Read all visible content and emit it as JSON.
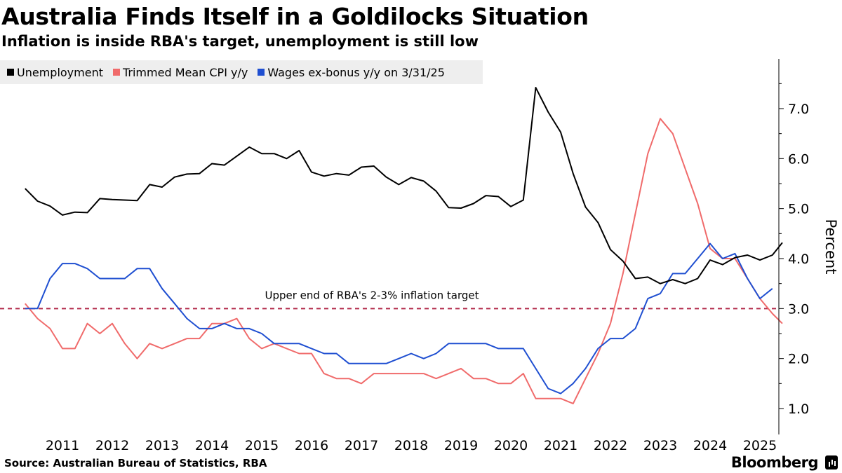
{
  "header": {
    "title": "Australia Finds Itself in a Goldilocks Situation",
    "subtitle": "Inflation is inside RBA's target, unemployment is still low"
  },
  "legend": [
    {
      "label": "Unemployment",
      "color": "#000000"
    },
    {
      "label": "Trimmed Mean CPI y/y",
      "color": "#f06b6b"
    },
    {
      "label": "Wages ex-bonus y/y on 3/31/25",
      "color": "#1f4fd1"
    }
  ],
  "footer": {
    "source": "Source: Australian Bureau of Statistics, RBA",
    "brand": "Bloomberg"
  },
  "chart_data": {
    "type": "line",
    "title": "Australia Finds Itself in a Goldilocks Situation",
    "subtitle": "Inflation is inside RBA's target, unemployment is still low",
    "xlabel": "",
    "ylabel": "Percent",
    "xlim": [
      2010.25,
      2025.45
    ],
    "ylim": [
      0.6,
      8.0
    ],
    "y_ticks": [
      1.0,
      2.0,
      3.0,
      4.0,
      5.0,
      6.0,
      7.0
    ],
    "y_tick_labels": [
      "1.0",
      "2.0",
      "3.0",
      "4.0",
      "5.0",
      "6.0",
      "7.0"
    ],
    "x_ticks": [
      2011,
      2012,
      2013,
      2014,
      2015,
      2016,
      2017,
      2018,
      2019,
      2020,
      2021,
      2022,
      2023,
      2024,
      2025
    ],
    "x_tick_labels": [
      "2011",
      "2012",
      "2013",
      "2014",
      "2015",
      "2016",
      "2017",
      "2018",
      "2019",
      "2020",
      "2021",
      "2022",
      "2023",
      "2024",
      "2025"
    ],
    "y_axis_position": "right",
    "grid": false,
    "legend_position": "top-left",
    "reference_line": {
      "y": 3.0,
      "label": "Upper end of RBA's 2-3% inflation target",
      "color": "#b22a4a",
      "style": "dashed"
    },
    "series": [
      {
        "name": "Unemployment",
        "color": "#000000",
        "points": [
          [
            2010.25,
            5.4
          ],
          [
            2010.5,
            5.15
          ],
          [
            2010.75,
            5.05
          ],
          [
            2011.0,
            4.87
          ],
          [
            2011.25,
            4.93
          ],
          [
            2011.5,
            4.92
          ],
          [
            2011.75,
            5.2
          ],
          [
            2012.0,
            5.18
          ],
          [
            2012.25,
            5.17
          ],
          [
            2012.5,
            5.16
          ],
          [
            2012.75,
            5.48
          ],
          [
            2013.0,
            5.43
          ],
          [
            2013.25,
            5.63
          ],
          [
            2013.5,
            5.69
          ],
          [
            2013.75,
            5.7
          ],
          [
            2014.0,
            5.9
          ],
          [
            2014.25,
            5.87
          ],
          [
            2014.5,
            6.05
          ],
          [
            2014.75,
            6.23
          ],
          [
            2015.0,
            6.1
          ],
          [
            2015.25,
            6.1
          ],
          [
            2015.5,
            6.0
          ],
          [
            2015.75,
            6.16
          ],
          [
            2016.0,
            5.73
          ],
          [
            2016.25,
            5.65
          ],
          [
            2016.5,
            5.7
          ],
          [
            2016.75,
            5.67
          ],
          [
            2017.0,
            5.83
          ],
          [
            2017.25,
            5.85
          ],
          [
            2017.5,
            5.63
          ],
          [
            2017.75,
            5.48
          ],
          [
            2018.0,
            5.62
          ],
          [
            2018.25,
            5.55
          ],
          [
            2018.5,
            5.35
          ],
          [
            2018.75,
            5.02
          ],
          [
            2019.0,
            5.01
          ],
          [
            2019.25,
            5.1
          ],
          [
            2019.5,
            5.26
          ],
          [
            2019.75,
            5.24
          ],
          [
            2020.0,
            5.04
          ],
          [
            2020.25,
            5.17
          ],
          [
            2020.5,
            7.42
          ],
          [
            2020.75,
            6.93
          ],
          [
            2021.0,
            6.53
          ],
          [
            2021.25,
            5.7
          ],
          [
            2021.5,
            5.03
          ],
          [
            2021.75,
            4.72
          ],
          [
            2022.0,
            4.18
          ],
          [
            2022.25,
            3.95
          ],
          [
            2022.5,
            3.6
          ],
          [
            2022.75,
            3.63
          ],
          [
            2023.0,
            3.5
          ],
          [
            2023.25,
            3.58
          ],
          [
            2023.5,
            3.5
          ],
          [
            2023.75,
            3.6
          ],
          [
            2024.0,
            3.97
          ],
          [
            2024.25,
            3.88
          ],
          [
            2024.5,
            4.02
          ],
          [
            2024.75,
            4.07
          ],
          [
            2025.0,
            3.97
          ],
          [
            2025.25,
            4.07
          ],
          [
            2025.45,
            4.32
          ]
        ]
      },
      {
        "name": "Trimmed Mean CPI y/y",
        "color": "#f06b6b",
        "points": [
          [
            2010.25,
            3.1
          ],
          [
            2010.5,
            2.8
          ],
          [
            2010.75,
            2.6
          ],
          [
            2011.0,
            2.2
          ],
          [
            2011.25,
            2.2
          ],
          [
            2011.5,
            2.7
          ],
          [
            2011.75,
            2.5
          ],
          [
            2012.0,
            2.7
          ],
          [
            2012.25,
            2.3
          ],
          [
            2012.5,
            2.0
          ],
          [
            2012.75,
            2.3
          ],
          [
            2013.0,
            2.2
          ],
          [
            2013.25,
            2.3
          ],
          [
            2013.5,
            2.4
          ],
          [
            2013.75,
            2.4
          ],
          [
            2014.0,
            2.7
          ],
          [
            2014.25,
            2.7
          ],
          [
            2014.5,
            2.8
          ],
          [
            2014.75,
            2.4
          ],
          [
            2015.0,
            2.2
          ],
          [
            2015.25,
            2.3
          ],
          [
            2015.5,
            2.2
          ],
          [
            2015.75,
            2.1
          ],
          [
            2016.0,
            2.1
          ],
          [
            2016.25,
            1.7
          ],
          [
            2016.5,
            1.6
          ],
          [
            2016.75,
            1.6
          ],
          [
            2017.0,
            1.5
          ],
          [
            2017.25,
            1.7
          ],
          [
            2017.5,
            1.7
          ],
          [
            2017.75,
            1.7
          ],
          [
            2018.0,
            1.7
          ],
          [
            2018.25,
            1.7
          ],
          [
            2018.5,
            1.6
          ],
          [
            2018.75,
            1.7
          ],
          [
            2019.0,
            1.8
          ],
          [
            2019.25,
            1.6
          ],
          [
            2019.5,
            1.6
          ],
          [
            2019.75,
            1.5
          ],
          [
            2020.0,
            1.5
          ],
          [
            2020.25,
            1.7
          ],
          [
            2020.5,
            1.2
          ],
          [
            2020.75,
            1.2
          ],
          [
            2021.0,
            1.2
          ],
          [
            2021.25,
            1.1
          ],
          [
            2021.5,
            1.6
          ],
          [
            2021.75,
            2.1
          ],
          [
            2022.0,
            2.7
          ],
          [
            2022.25,
            3.7
          ],
          [
            2022.5,
            4.9
          ],
          [
            2022.75,
            6.1
          ],
          [
            2023.0,
            6.8
          ],
          [
            2023.25,
            6.5
          ],
          [
            2023.5,
            5.8
          ],
          [
            2023.75,
            5.1
          ],
          [
            2024.0,
            4.2
          ],
          [
            2024.25,
            4.0
          ],
          [
            2024.5,
            4.0
          ],
          [
            2024.75,
            3.6
          ],
          [
            2025.0,
            3.2
          ],
          [
            2025.25,
            2.9
          ],
          [
            2025.45,
            2.7
          ]
        ]
      },
      {
        "name": "Wages ex-bonus y/y on 3/31/25",
        "color": "#1f4fd1",
        "points": [
          [
            2010.25,
            3.0
          ],
          [
            2010.5,
            3.0
          ],
          [
            2010.75,
            3.6
          ],
          [
            2011.0,
            3.9
          ],
          [
            2011.25,
            3.9
          ],
          [
            2011.5,
            3.8
          ],
          [
            2011.75,
            3.6
          ],
          [
            2012.0,
            3.6
          ],
          [
            2012.25,
            3.6
          ],
          [
            2012.5,
            3.8
          ],
          [
            2012.75,
            3.8
          ],
          [
            2013.0,
            3.4
          ],
          [
            2013.25,
            3.1
          ],
          [
            2013.5,
            2.8
          ],
          [
            2013.75,
            2.6
          ],
          [
            2014.0,
            2.6
          ],
          [
            2014.25,
            2.7
          ],
          [
            2014.5,
            2.6
          ],
          [
            2014.75,
            2.6
          ],
          [
            2015.0,
            2.5
          ],
          [
            2015.25,
            2.3
          ],
          [
            2015.5,
            2.3
          ],
          [
            2015.75,
            2.3
          ],
          [
            2016.0,
            2.2
          ],
          [
            2016.25,
            2.1
          ],
          [
            2016.5,
            2.1
          ],
          [
            2016.75,
            1.9
          ],
          [
            2017.0,
            1.9
          ],
          [
            2017.25,
            1.9
          ],
          [
            2017.5,
            1.9
          ],
          [
            2017.75,
            2.0
          ],
          [
            2018.0,
            2.1
          ],
          [
            2018.25,
            2.0
          ],
          [
            2018.5,
            2.1
          ],
          [
            2018.75,
            2.3
          ],
          [
            2019.0,
            2.3
          ],
          [
            2019.25,
            2.3
          ],
          [
            2019.5,
            2.3
          ],
          [
            2019.75,
            2.2
          ],
          [
            2020.0,
            2.2
          ],
          [
            2020.25,
            2.2
          ],
          [
            2020.5,
            1.8
          ],
          [
            2020.75,
            1.4
          ],
          [
            2021.0,
            1.3
          ],
          [
            2021.25,
            1.5
          ],
          [
            2021.5,
            1.8
          ],
          [
            2021.75,
            2.2
          ],
          [
            2022.0,
            2.4
          ],
          [
            2022.25,
            2.4
          ],
          [
            2022.5,
            2.6
          ],
          [
            2022.75,
            3.2
          ],
          [
            2023.0,
            3.3
          ],
          [
            2023.25,
            3.7
          ],
          [
            2023.5,
            3.7
          ],
          [
            2023.75,
            4.0
          ],
          [
            2024.0,
            4.3
          ],
          [
            2024.25,
            4.0
          ],
          [
            2024.5,
            4.1
          ],
          [
            2024.75,
            3.6
          ],
          [
            2025.0,
            3.2
          ],
          [
            2025.25,
            3.4
          ]
        ]
      }
    ]
  }
}
